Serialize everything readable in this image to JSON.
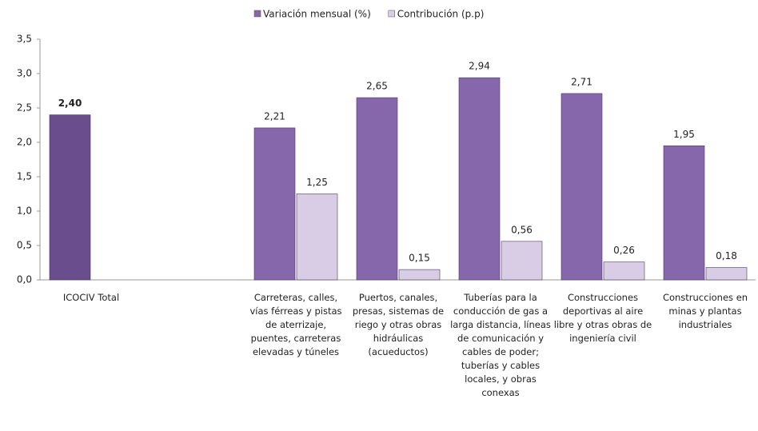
{
  "chart_data": {
    "type": "bar",
    "categories": [
      "ICOCIV Total",
      null,
      "Carreteras, calles, vías férreas y pistas de aterrizaje, puentes, carreteras elevadas y túneles",
      "Puertos, canales, presas, sistemas de riego y otras obras hidráulicas (acueductos)",
      "Tuberías para la conducción de gas a larga distancia, líneas de comunicación y cables de poder; tuberías y cables locales, y obras conexas",
      "Construcciones deportivas al aire libre y otras obras de ingeniería civil",
      "Construcciones en minas y plantas industriales"
    ],
    "series": [
      {
        "name": "Variación mensual (%)",
        "color": "#8767ab",
        "colors": [
          "#6a4d8c",
          null,
          "#8767ab",
          "#8767ab",
          "#8767ab",
          "#8767ab",
          "#8767ab"
        ],
        "values": [
          2.4,
          null,
          2.21,
          2.65,
          2.94,
          2.71,
          1.95
        ],
        "value_labels": [
          "2,40",
          null,
          "2,21",
          "2,65",
          "2,94",
          "2,71",
          "1,95"
        ]
      },
      {
        "name": "Contribución (p.p)",
        "color": "#d9cde6",
        "values": [
          null,
          null,
          1.25,
          0.15,
          0.56,
          0.26,
          0.18
        ],
        "value_labels": [
          null,
          null,
          "1,25",
          "0,15",
          "0,56",
          "0,26",
          "0,18"
        ]
      }
    ],
    "ylim": [
      0,
      3.5
    ],
    "yticks": [
      {
        "value": 0,
        "label": "0,0"
      },
      {
        "value": 0.5,
        "label": "0,5"
      },
      {
        "value": 1,
        "label": "1,0"
      },
      {
        "value": 1.5,
        "label": "1,5"
      },
      {
        "value": 2,
        "label": "2,0"
      },
      {
        "value": 2.5,
        "label": "2,5"
      },
      {
        "value": 3,
        "label": "3,0"
      },
      {
        "value": 3.5,
        "label": "3,5"
      }
    ],
    "legend": "top"
  }
}
